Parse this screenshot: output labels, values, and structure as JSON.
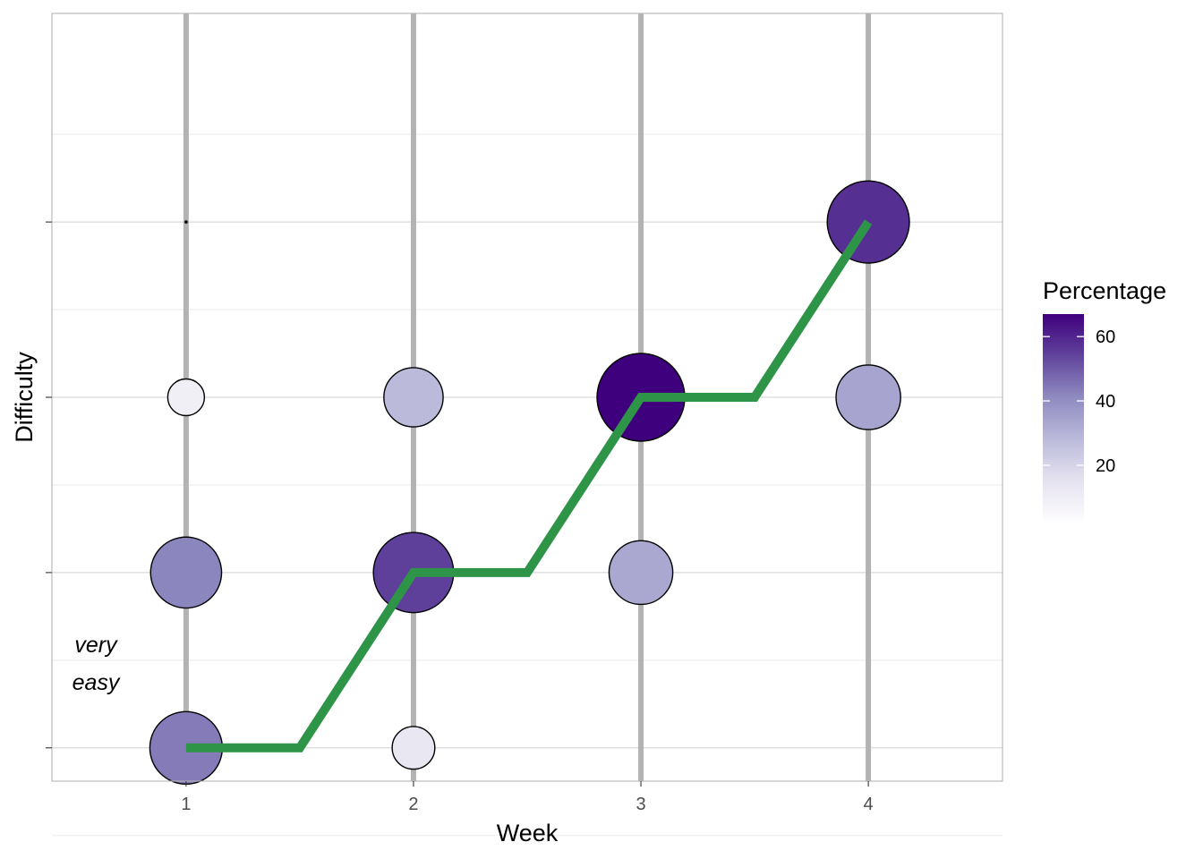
{
  "chart_data": {
    "type": "scatter",
    "xlabel": "Week",
    "ylabel": "Difficulty",
    "x_ticks": [
      "1",
      "2",
      "3",
      "4"
    ],
    "xlim": [
      0.41,
      4.59
    ],
    "ylim": [
      0.81,
      5.19
    ],
    "y_levels": [
      1,
      2,
      3,
      4
    ],
    "grid": true,
    "week_line_color": "#b3b3b3",
    "annotation": {
      "lines": [
        "very",
        "easy"
      ],
      "x": 1,
      "y": 1,
      "style": "italic"
    },
    "points": [
      {
        "week": 1,
        "difficulty": 1,
        "percentage": 44
      },
      {
        "week": 1,
        "difficulty": 2,
        "percentage": 42
      },
      {
        "week": 1,
        "difficulty": 3,
        "percentage": 9
      },
      {
        "week": 1,
        "difficulty": 4,
        "percentage": 0.5
      },
      {
        "week": 2,
        "difficulty": 1,
        "percentage": 13
      },
      {
        "week": 2,
        "difficulty": 2,
        "percentage": 55
      },
      {
        "week": 2,
        "difficulty": 3,
        "percentage": 28
      },
      {
        "week": 3,
        "difficulty": 2,
        "percentage": 33
      },
      {
        "week": 3,
        "difficulty": 3,
        "percentage": 67
      },
      {
        "week": 4,
        "difficulty": 3,
        "percentage": 34
      },
      {
        "week": 4,
        "difficulty": 4,
        "percentage": 58
      }
    ],
    "median_line": {
      "color": "#2e9448",
      "x": [
        1,
        1.5,
        2,
        2.5,
        3,
        3.5,
        4
      ],
      "y": [
        1,
        1,
        2,
        2,
        3,
        3,
        4
      ]
    },
    "legend": {
      "title": "Percentage",
      "placement": "right",
      "ticks": [
        20,
        40,
        60
      ],
      "range": [
        3,
        67
      ],
      "color_low": "#efedf5",
      "color_high": "#3f007d"
    }
  }
}
